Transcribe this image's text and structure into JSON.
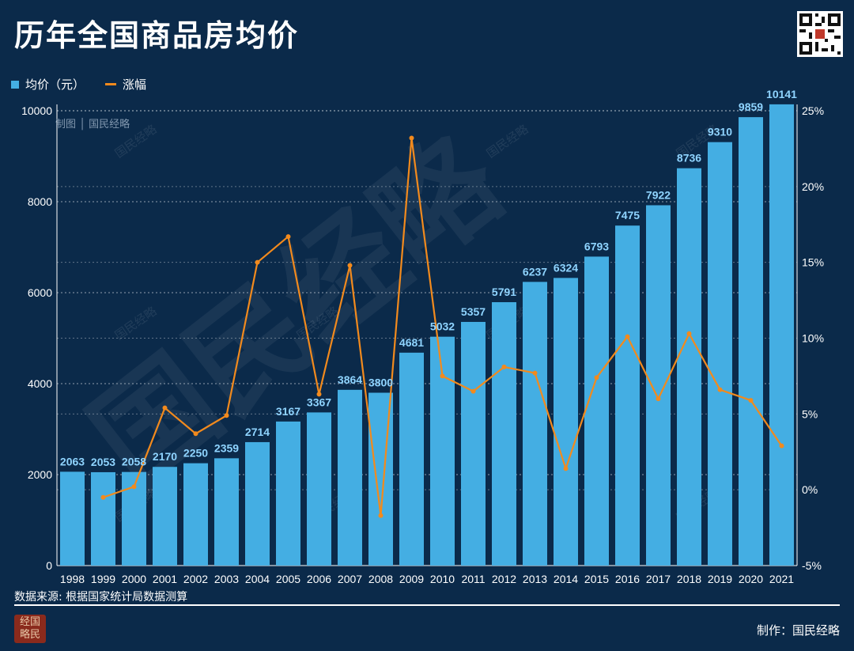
{
  "header": {
    "title": "历年全国商品房均价"
  },
  "legend": {
    "bar_label": "均价（元）",
    "line_label": "涨幅"
  },
  "watermark": {
    "made_by_tag": "制图 │ 国民经略",
    "big_text": "国民经略",
    "small_text": "国民经略",
    "seal_text": "经国略民"
  },
  "footer": {
    "source": "数据来源: 根据国家统计局数据测算",
    "credit": "制作：国民经略"
  },
  "colors": {
    "background": "#0b2a4a",
    "bar": "#44aee3",
    "line": "#f28a1d",
    "bar_label": "#8fd4ff"
  },
  "chart_data": {
    "type": "bar",
    "title": "历年全国商品房均价",
    "categories": [
      "1998",
      "1999",
      "2000",
      "2001",
      "2002",
      "2003",
      "2004",
      "2005",
      "2006",
      "2007",
      "2008",
      "2009",
      "2010",
      "2011",
      "2012",
      "2013",
      "2014",
      "2015",
      "2016",
      "2017",
      "2018",
      "2019",
      "2020",
      "2021"
    ],
    "series": [
      {
        "name": "均价（元）",
        "type": "bar",
        "axis": "left",
        "values": [
          2063,
          2053,
          2058,
          2170,
          2250,
          2359,
          2714,
          3167,
          3367,
          3864,
          3800,
          4681,
          5032,
          5357,
          5791,
          6237,
          6324,
          6793,
          7475,
          7922,
          8736,
          9310,
          9859,
          10141
        ]
      },
      {
        "name": "涨幅",
        "type": "line",
        "axis": "right",
        "values": [
          null,
          -0.5,
          0.2,
          5.4,
          3.7,
          4.9,
          15.0,
          16.7,
          6.3,
          14.8,
          -1.7,
          23.2,
          7.5,
          6.5,
          8.1,
          7.7,
          1.4,
          7.4,
          10.1,
          6.0,
          10.3,
          6.6,
          5.9,
          2.9
        ]
      }
    ],
    "y_left": {
      "min": 0,
      "max": 10000,
      "ticks": [
        "0",
        "2000",
        "4000",
        "6000",
        "8000",
        "10000"
      ]
    },
    "y_right": {
      "min": -5,
      "max": 25,
      "ticks": [
        "-5%",
        "0%",
        "5%",
        "10%",
        "15%",
        "20%",
        "25%"
      ]
    },
    "grid": "dashed horizontal at left-axis ticks",
    "legend_position": "top-left"
  }
}
